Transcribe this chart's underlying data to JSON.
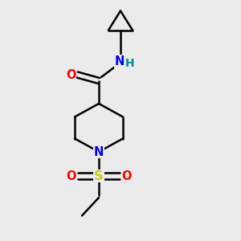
{
  "background_color": "#ebebeb",
  "bond_color": "#000000",
  "atom_colors": {
    "O": "#ff0000",
    "N": "#0000ff",
    "S": "#cccc00",
    "H": "#008b8b"
  },
  "bond_width": 1.8,
  "font_size": 10.5,
  "fig_size": [
    3.0,
    3.0
  ],
  "dpi": 100
}
